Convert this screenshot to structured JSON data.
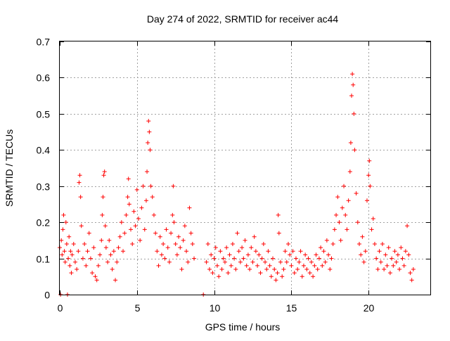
{
  "chart_data": {
    "type": "scatter",
    "title": "Day 274 of 2022, SRMTID for receiver ac44",
    "xlabel": "GPS time / hours",
    "ylabel": "SRMTID / TECUs",
    "xlim": [
      0,
      24
    ],
    "ylim": [
      0,
      0.7
    ],
    "xticks": [
      0,
      5,
      10,
      15,
      20
    ],
    "yticks": [
      0,
      0.1,
      0.2,
      0.3,
      0.4,
      0.5,
      0.6,
      0.7
    ],
    "ytick_labels": [
      "0",
      "0.1",
      "0.2",
      "0.3",
      "0.4",
      "0.5",
      "0.6",
      "0.7"
    ],
    "grid": true,
    "marker": "+",
    "color": "#ff0000",
    "series": [
      {
        "name": "ac44",
        "points": [
          [
            0.0,
            0.13
          ],
          [
            0.05,
            0.0
          ],
          [
            0.1,
            0.15
          ],
          [
            0.15,
            0.11
          ],
          [
            0.2,
            0.18
          ],
          [
            0.25,
            0.22
          ],
          [
            0.3,
            0.12
          ],
          [
            0.35,
            0.09
          ],
          [
            0.4,
            0.2
          ],
          [
            0.45,
            0.14
          ],
          [
            0.5,
            0.0
          ],
          [
            0.55,
            0.1
          ],
          [
            0.6,
            0.16
          ],
          [
            0.65,
            0.08
          ],
          [
            0.7,
            0.12
          ],
          [
            0.75,
            0.06
          ],
          [
            0.8,
            0.11
          ],
          [
            0.9,
            0.14
          ],
          [
            1.0,
            0.09
          ],
          [
            1.1,
            0.07
          ],
          [
            1.2,
            0.12
          ],
          [
            1.25,
            0.31
          ],
          [
            1.3,
            0.33
          ],
          [
            1.35,
            0.27
          ],
          [
            1.4,
            0.19
          ],
          [
            1.5,
            0.1
          ],
          [
            1.6,
            0.14
          ],
          [
            1.7,
            0.08
          ],
          [
            1.8,
            0.12
          ],
          [
            1.9,
            0.17
          ],
          [
            2.0,
            0.1
          ],
          [
            2.1,
            0.06
          ],
          [
            2.2,
            0.13
          ],
          [
            2.3,
            0.05
          ],
          [
            2.4,
            0.04
          ],
          [
            2.5,
            0.08
          ],
          [
            2.6,
            0.11
          ],
          [
            2.7,
            0.15
          ],
          [
            2.75,
            0.22
          ],
          [
            2.8,
            0.27
          ],
          [
            2.85,
            0.33
          ],
          [
            2.9,
            0.34
          ],
          [
            2.95,
            0.19
          ],
          [
            3.0,
            0.13
          ],
          [
            3.1,
            0.09
          ],
          [
            3.2,
            0.15
          ],
          [
            3.3,
            0.11
          ],
          [
            3.4,
            0.07
          ],
          [
            3.5,
            0.12
          ],
          [
            3.6,
            0.04
          ],
          [
            3.7,
            0.09
          ],
          [
            3.8,
            0.13
          ],
          [
            3.9,
            0.16
          ],
          [
            4.0,
            0.2
          ],
          [
            4.1,
            0.12
          ],
          [
            4.2,
            0.17
          ],
          [
            4.3,
            0.22
          ],
          [
            4.4,
            0.27
          ],
          [
            4.45,
            0.32
          ],
          [
            4.5,
            0.25
          ],
          [
            4.6,
            0.18
          ],
          [
            4.7,
            0.14
          ],
          [
            4.8,
            0.23
          ],
          [
            4.9,
            0.19
          ],
          [
            5.0,
            0.29
          ],
          [
            5.1,
            0.21
          ],
          [
            5.2,
            0.15
          ],
          [
            5.3,
            0.24
          ],
          [
            5.4,
            0.3
          ],
          [
            5.5,
            0.18
          ],
          [
            5.6,
            0.26
          ],
          [
            5.65,
            0.34
          ],
          [
            5.7,
            0.42
          ],
          [
            5.75,
            0.48
          ],
          [
            5.8,
            0.45
          ],
          [
            5.85,
            0.4
          ],
          [
            5.9,
            0.3
          ],
          [
            6.0,
            0.27
          ],
          [
            6.1,
            0.22
          ],
          [
            6.2,
            0.17
          ],
          [
            6.3,
            0.12
          ],
          [
            6.4,
            0.08
          ],
          [
            6.5,
            0.16
          ],
          [
            6.6,
            0.11
          ],
          [
            6.7,
            0.14
          ],
          [
            6.8,
            0.1
          ],
          [
            6.9,
            0.18
          ],
          [
            7.0,
            0.13
          ],
          [
            7.1,
            0.09
          ],
          [
            7.2,
            0.17
          ],
          [
            7.3,
            0.22
          ],
          [
            7.35,
            0.3
          ],
          [
            7.4,
            0.2
          ],
          [
            7.5,
            0.14
          ],
          [
            7.6,
            0.11
          ],
          [
            7.7,
            0.16
          ],
          [
            7.8,
            0.13
          ],
          [
            7.9,
            0.07
          ],
          [
            8.0,
            0.15
          ],
          [
            8.1,
            0.19
          ],
          [
            8.2,
            0.12
          ],
          [
            8.3,
            0.09
          ],
          [
            8.4,
            0.24
          ],
          [
            8.5,
            0.17
          ],
          [
            8.6,
            0.14
          ],
          [
            8.7,
            0.1
          ],
          [
            9.3,
            0.0
          ],
          [
            9.5,
            0.09
          ],
          [
            9.6,
            0.14
          ],
          [
            9.7,
            0.07
          ],
          [
            9.8,
            0.11
          ],
          [
            9.9,
            0.06
          ],
          [
            10.0,
            0.1
          ],
          [
            10.1,
            0.13
          ],
          [
            10.2,
            0.08
          ],
          [
            10.3,
            0.05
          ],
          [
            10.4,
            0.12
          ],
          [
            10.5,
            0.07
          ],
          [
            10.6,
            0.1
          ],
          [
            10.7,
            0.09
          ],
          [
            10.8,
            0.13
          ],
          [
            10.9,
            0.06
          ],
          [
            11.0,
            0.11
          ],
          [
            11.1,
            0.08
          ],
          [
            11.2,
            0.14
          ],
          [
            11.3,
            0.1
          ],
          [
            11.4,
            0.07
          ],
          [
            11.5,
            0.17
          ],
          [
            11.6,
            0.12
          ],
          [
            11.7,
            0.09
          ],
          [
            11.8,
            0.13
          ],
          [
            11.9,
            0.1
          ],
          [
            12.0,
            0.15
          ],
          [
            12.1,
            0.08
          ],
          [
            12.2,
            0.11
          ],
          [
            12.3,
            0.07
          ],
          [
            12.4,
            0.13
          ],
          [
            12.5,
            0.09
          ],
          [
            12.6,
            0.16
          ],
          [
            12.7,
            0.12
          ],
          [
            12.8,
            0.08
          ],
          [
            12.9,
            0.11
          ],
          [
            13.0,
            0.06
          ],
          [
            13.1,
            0.1
          ],
          [
            13.2,
            0.14
          ],
          [
            13.3,
            0.09
          ],
          [
            13.4,
            0.07
          ],
          [
            13.5,
            0.12
          ],
          [
            13.6,
            0.08
          ],
          [
            13.7,
            0.05
          ],
          [
            13.8,
            0.1
          ],
          [
            13.9,
            0.07
          ],
          [
            14.0,
            0.04
          ],
          [
            14.1,
            0.06
          ],
          [
            14.15,
            0.22
          ],
          [
            14.2,
            0.17
          ],
          [
            14.3,
            0.09
          ],
          [
            14.4,
            0.05
          ],
          [
            14.5,
            0.07
          ],
          [
            14.6,
            0.12
          ],
          [
            14.7,
            0.09
          ],
          [
            14.8,
            0.14
          ],
          [
            14.9,
            0.11
          ],
          [
            15.0,
            0.08
          ],
          [
            15.1,
            0.12
          ],
          [
            15.2,
            0.06
          ],
          [
            15.3,
            0.1
          ],
          [
            15.4,
            0.07
          ],
          [
            15.5,
            0.09
          ],
          [
            15.6,
            0.12
          ],
          [
            15.7,
            0.05
          ],
          [
            15.8,
            0.08
          ],
          [
            15.9,
            0.11
          ],
          [
            16.0,
            0.07
          ],
          [
            16.1,
            0.1
          ],
          [
            16.2,
            0.06
          ],
          [
            16.3,
            0.09
          ],
          [
            16.4,
            0.05
          ],
          [
            16.5,
            0.08
          ],
          [
            16.6,
            0.11
          ],
          [
            16.7,
            0.07
          ],
          [
            16.8,
            0.1
          ],
          [
            16.9,
            0.13
          ],
          [
            17.0,
            0.08
          ],
          [
            17.1,
            0.12
          ],
          [
            17.2,
            0.09
          ],
          [
            17.3,
            0.15
          ],
          [
            17.4,
            0.11
          ],
          [
            17.5,
            0.07
          ],
          [
            17.6,
            0.1
          ],
          [
            17.7,
            0.14
          ],
          [
            17.8,
            0.18
          ],
          [
            17.9,
            0.22
          ],
          [
            18.0,
            0.27
          ],
          [
            18.1,
            0.2
          ],
          [
            18.2,
            0.15
          ],
          [
            18.3,
            0.24
          ],
          [
            18.4,
            0.3
          ],
          [
            18.5,
            0.22
          ],
          [
            18.6,
            0.18
          ],
          [
            18.7,
            0.26
          ],
          [
            18.8,
            0.34
          ],
          [
            18.85,
            0.42
          ],
          [
            18.9,
            0.55
          ],
          [
            18.95,
            0.61
          ],
          [
            19.0,
            0.58
          ],
          [
            19.05,
            0.5
          ],
          [
            19.1,
            0.4
          ],
          [
            19.2,
            0.28
          ],
          [
            19.3,
            0.2
          ],
          [
            19.4,
            0.14
          ],
          [
            19.5,
            0.11
          ],
          [
            19.6,
            0.16
          ],
          [
            19.7,
            0.09
          ],
          [
            19.8,
            0.12
          ],
          [
            19.9,
            0.26
          ],
          [
            20.0,
            0.33
          ],
          [
            20.05,
            0.37
          ],
          [
            20.1,
            0.3
          ],
          [
            20.2,
            0.18
          ],
          [
            20.3,
            0.21
          ],
          [
            20.4,
            0.14
          ],
          [
            20.5,
            0.1
          ],
          [
            20.6,
            0.07
          ],
          [
            20.7,
            0.12
          ],
          [
            20.8,
            0.09
          ],
          [
            20.9,
            0.14
          ],
          [
            21.0,
            0.07
          ],
          [
            21.1,
            0.11
          ],
          [
            21.2,
            0.08
          ],
          [
            21.3,
            0.13
          ],
          [
            21.4,
            0.06
          ],
          [
            21.5,
            0.1
          ],
          [
            21.6,
            0.08
          ],
          [
            21.7,
            0.12
          ],
          [
            21.8,
            0.09
          ],
          [
            21.9,
            0.11
          ],
          [
            22.0,
            0.07
          ],
          [
            22.1,
            0.13
          ],
          [
            22.2,
            0.1
          ],
          [
            22.3,
            0.08
          ],
          [
            22.4,
            0.12
          ],
          [
            22.5,
            0.19
          ],
          [
            22.6,
            0.11
          ],
          [
            22.7,
            0.06
          ],
          [
            22.8,
            0.04
          ],
          [
            22.9,
            0.07
          ]
        ]
      }
    ]
  }
}
